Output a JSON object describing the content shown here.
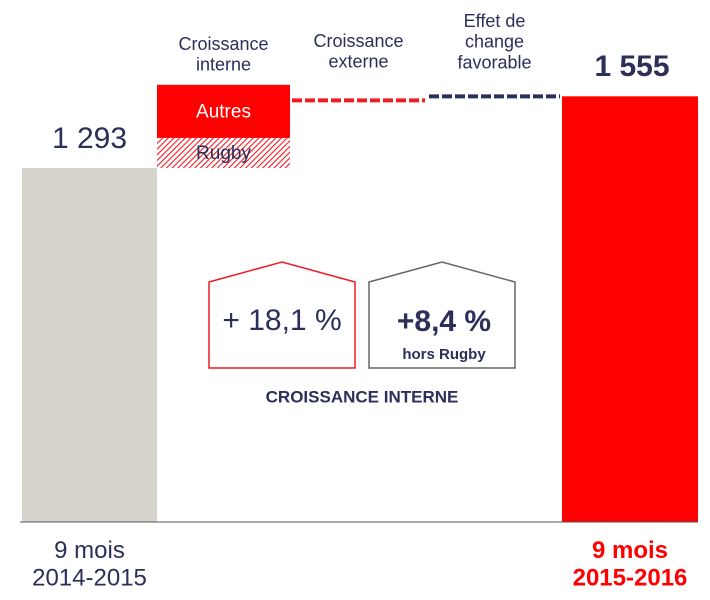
{
  "chart_data": {
    "type": "waterfall",
    "categories": [
      "9 mois\n2014-2015",
      "Croissance\ninterne",
      "Croissance\nexterne",
      "Effet de\nchange\nfavorable",
      "9 mois\n2015-2016"
    ],
    "values": [
      1293,
      null,
      -57,
      15,
      1555
    ],
    "value_labels": [
      "1 293",
      null,
      null,
      null,
      "1 555"
    ],
    "colors": [
      "#d6d2cc",
      null,
      "#ee1c25",
      "#2b2f5a",
      "#ff0000"
    ],
    "segments": [
      {
        "name": "Rugby",
        "value": 110,
        "color": "#ee1c25",
        "pattern": "hatch"
      },
      {
        "name": "Autres",
        "value": 194,
        "color": "#ff0000"
      }
    ],
    "ylim": [
      0,
      1600
    ],
    "annotations": [
      "+ 18,1 %",
      "+8,4 %",
      "hors Rugby",
      "CROISSANCE INTERNE"
    ]
  }
}
